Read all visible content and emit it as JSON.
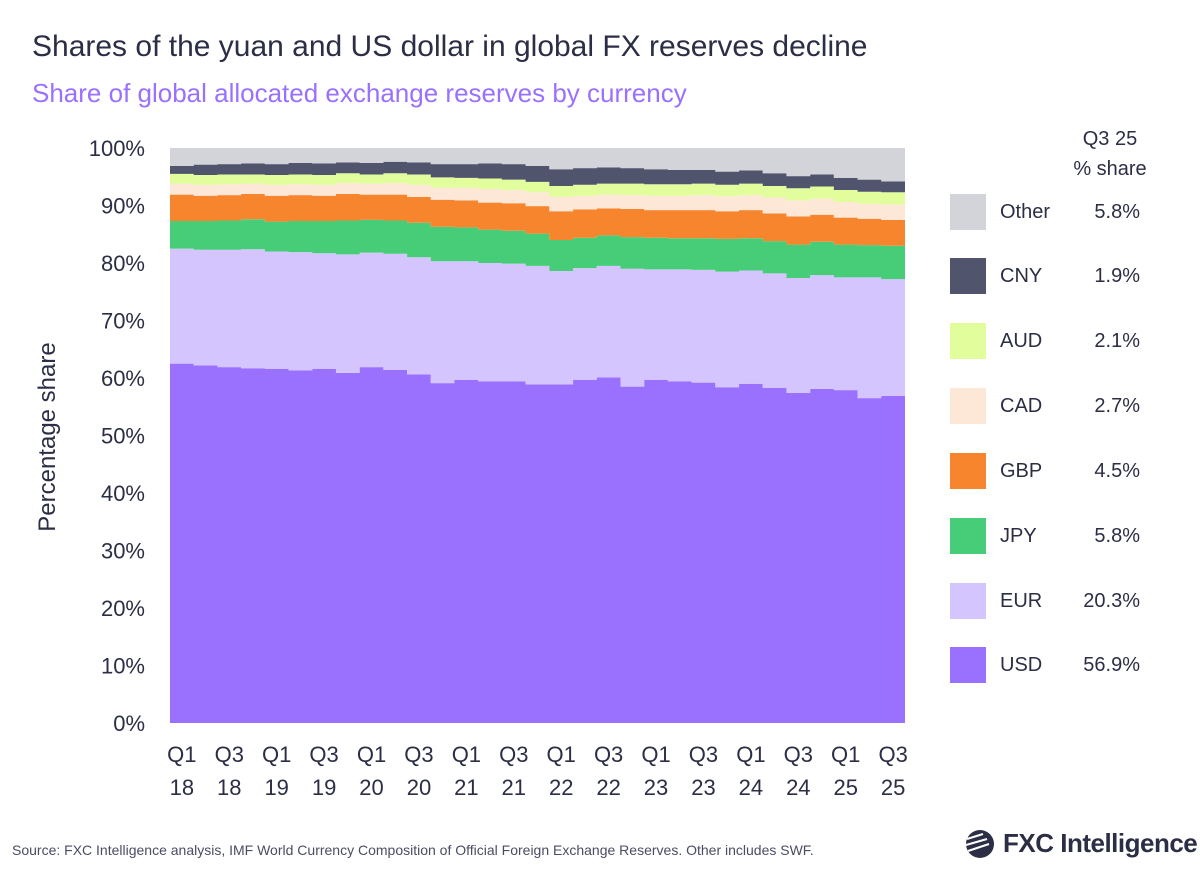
{
  "title": "Shares of the yuan and US dollar in global FX reserves decline",
  "subtitle": "Share of global allocated exchange reserves by currency",
  "source": "Source: FXC Intelligence analysis, IMF World Currency Composition of Official Foreign Exchange Reserves. Other includes SWF.",
  "logo_text": "FXC Intelligence",
  "legend": {
    "header_line1": "Q3 25",
    "header_line2": "% share",
    "items": [
      {
        "name": "Other",
        "value": "5.8%",
        "color": "#d3d4d9"
      },
      {
        "name": "CNY",
        "value": "1.9%",
        "color": "#50546c"
      },
      {
        "name": "AUD",
        "value": "2.1%",
        "color": "#e1fd9c"
      },
      {
        "name": "CAD",
        "value": "2.7%",
        "color": "#fde8d8"
      },
      {
        "name": "GBP",
        "value": "4.5%",
        "color": "#f6852e"
      },
      {
        "name": "JPY",
        "value": "5.8%",
        "color": "#47cd78"
      },
      {
        "name": "EUR",
        "value": "20.3%",
        "color": "#d4c5ff"
      },
      {
        "name": "USD",
        "value": "56.9%",
        "color": "#9a71ff"
      }
    ]
  },
  "chart_data": {
    "type": "area",
    "stacked": true,
    "step": true,
    "title": "Shares of the yuan and US dollar in global FX reserves decline",
    "subtitle": "Share of global allocated exchange reserves by currency",
    "ylabel": "Percentage share",
    "xlabel": "",
    "ylim": [
      0,
      100
    ],
    "yticks": [
      "0%",
      "10%",
      "20%",
      "30%",
      "40%",
      "50%",
      "60%",
      "70%",
      "80%",
      "90%",
      "100%"
    ],
    "x": [
      "Q1 18",
      "Q2 18",
      "Q3 18",
      "Q4 18",
      "Q1 19",
      "Q2 19",
      "Q3 19",
      "Q4 19",
      "Q1 20",
      "Q2 20",
      "Q3 20",
      "Q4 20",
      "Q1 21",
      "Q2 21",
      "Q3 21",
      "Q4 21",
      "Q1 22",
      "Q2 22",
      "Q3 22",
      "Q4 22",
      "Q1 23",
      "Q2 23",
      "Q3 23",
      "Q4 23",
      "Q1 24",
      "Q2 24",
      "Q3 24",
      "Q4 24",
      "Q1 25",
      "Q2 25",
      "Q3 25"
    ],
    "xtick_labels": [
      [
        "Q1",
        "18"
      ],
      [
        "Q3",
        "18"
      ],
      [
        "Q1",
        "19"
      ],
      [
        "Q3",
        "19"
      ],
      [
        "Q1",
        "20"
      ],
      [
        "Q3",
        "20"
      ],
      [
        "Q1",
        "21"
      ],
      [
        "Q3",
        "21"
      ],
      [
        "Q1",
        "22"
      ],
      [
        "Q3",
        "22"
      ],
      [
        "Q1",
        "23"
      ],
      [
        "Q3",
        "23"
      ],
      [
        "Q1",
        "24"
      ],
      [
        "Q3",
        "24"
      ],
      [
        "Q1",
        "25"
      ],
      [
        "Q3",
        "25"
      ]
    ],
    "legend_position": "right",
    "grid": false,
    "series": [
      {
        "name": "USD",
        "color": "#9a71ff",
        "values": [
          62.5,
          62.2,
          61.9,
          61.7,
          61.6,
          61.3,
          61.6,
          60.9,
          61.9,
          61.4,
          60.6,
          59.1,
          59.7,
          59.4,
          59.4,
          58.9,
          58.9,
          59.7,
          60.1,
          58.5,
          59.7,
          59.4,
          59.2,
          58.4,
          59.0,
          58.3,
          57.4,
          58.1,
          57.9,
          56.5,
          56.9
        ]
      },
      {
        "name": "EUR",
        "color": "#d4c5ff",
        "values": [
          20.0,
          20.1,
          20.4,
          20.7,
          20.4,
          20.6,
          20.1,
          20.6,
          19.9,
          20.2,
          20.4,
          21.2,
          20.6,
          20.6,
          20.5,
          20.6,
          19.7,
          19.4,
          19.4,
          20.5,
          19.2,
          19.5,
          19.6,
          20.1,
          19.7,
          19.9,
          20.0,
          19.8,
          19.6,
          21.0,
          20.3
        ]
      },
      {
        "name": "JPY",
        "color": "#47cd78",
        "values": [
          4.8,
          5.0,
          5.1,
          5.2,
          5.2,
          5.4,
          5.6,
          5.9,
          5.7,
          5.8,
          6.0,
          6.0,
          5.9,
          5.8,
          5.7,
          5.6,
          5.4,
          5.3,
          5.3,
          5.5,
          5.5,
          5.4,
          5.5,
          5.7,
          5.6,
          5.6,
          5.8,
          5.8,
          5.7,
          5.6,
          5.8
        ]
      },
      {
        "name": "GBP",
        "color": "#f6852e",
        "values": [
          4.6,
          4.4,
          4.4,
          4.4,
          4.5,
          4.5,
          4.4,
          4.6,
          4.4,
          4.5,
          4.5,
          4.7,
          4.7,
          4.7,
          4.8,
          4.8,
          5.0,
          4.9,
          4.7,
          4.9,
          4.8,
          4.9,
          4.9,
          4.8,
          4.9,
          4.8,
          4.9,
          4.7,
          4.7,
          4.6,
          4.5
        ]
      },
      {
        "name": "CAD",
        "color": "#fde8d8",
        "values": [
          1.9,
          1.9,
          1.9,
          1.8,
          1.9,
          1.9,
          1.9,
          1.9,
          1.9,
          2.0,
          2.1,
          2.1,
          2.2,
          2.4,
          2.3,
          2.4,
          2.5,
          2.4,
          2.4,
          2.4,
          2.5,
          2.5,
          2.6,
          2.6,
          2.6,
          2.8,
          2.8,
          2.8,
          2.7,
          2.6,
          2.7
        ]
      },
      {
        "name": "AUD",
        "color": "#e1fd9c",
        "values": [
          1.7,
          1.7,
          1.7,
          1.6,
          1.7,
          1.7,
          1.7,
          1.7,
          1.6,
          1.7,
          1.8,
          1.8,
          1.7,
          1.8,
          1.8,
          1.8,
          1.9,
          1.9,
          1.9,
          2.0,
          2.0,
          2.0,
          2.0,
          2.0,
          2.0,
          2.0,
          2.1,
          2.1,
          2.1,
          2.1,
          2.1
        ]
      },
      {
        "name": "CNY",
        "color": "#50546c",
        "values": [
          1.4,
          1.8,
          1.8,
          1.9,
          1.9,
          2.0,
          2.0,
          1.9,
          2.0,
          2.0,
          2.1,
          2.3,
          2.4,
          2.6,
          2.7,
          2.8,
          2.9,
          2.9,
          2.8,
          2.7,
          2.6,
          2.5,
          2.4,
          2.3,
          2.3,
          2.2,
          2.1,
          2.1,
          2.1,
          2.1,
          1.9
        ]
      },
      {
        "name": "Other",
        "color": "#d3d4d9",
        "values": [
          3.1,
          2.9,
          2.8,
          2.7,
          2.8,
          2.6,
          2.7,
          2.5,
          2.6,
          2.4,
          2.5,
          2.8,
          2.8,
          2.7,
          2.8,
          3.1,
          3.7,
          3.5,
          3.4,
          3.5,
          3.7,
          3.8,
          3.8,
          4.1,
          3.9,
          4.4,
          4.9,
          4.6,
          5.2,
          5.5,
          5.8
        ]
      }
    ]
  }
}
